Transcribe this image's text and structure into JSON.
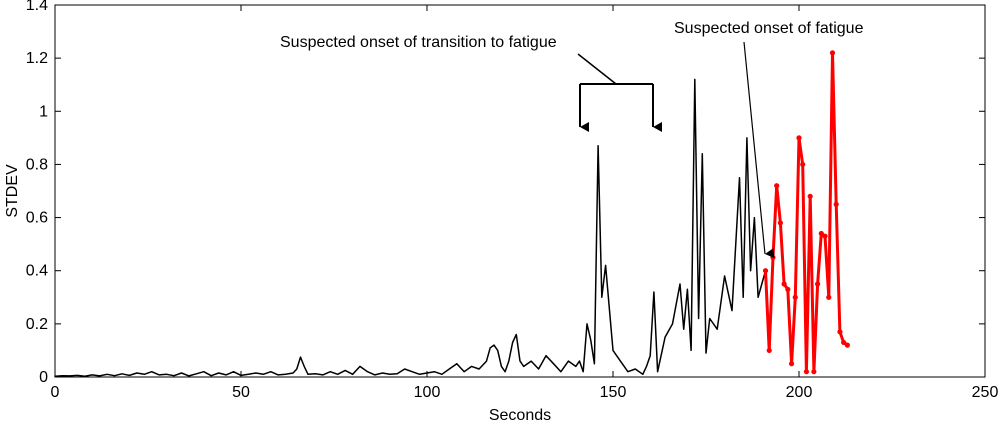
{
  "chart_data": {
    "type": "line",
    "title": "",
    "xlabel": "Seconds",
    "ylabel": "STDEV",
    "xlim": [
      0,
      250
    ],
    "ylim": [
      0,
      1.4
    ],
    "xticks": [
      0,
      50,
      100,
      150,
      200,
      250
    ],
    "yticks": [
      0,
      0.2,
      0.4,
      0.6,
      0.8,
      1,
      1.2,
      1.4
    ],
    "xtick_labels": [
      "0",
      "50",
      "100",
      "150",
      "200",
      "250"
    ],
    "ytick_labels": [
      "0",
      "0.2",
      "0.4",
      "0.6",
      "0.8",
      "1",
      "1.2",
      "1.4"
    ],
    "grid": false,
    "series": [
      {
        "color": "#000000",
        "x": [
          0,
          2,
          4,
          6,
          8,
          10,
          12,
          14,
          16,
          18,
          20,
          22,
          24,
          26,
          28,
          30,
          32,
          34,
          36,
          38,
          40,
          42,
          44,
          46,
          48,
          50,
          52,
          54,
          56,
          58,
          60,
          62,
          64,
          65,
          66,
          67,
          68,
          70,
          72,
          74,
          76,
          78,
          80,
          82,
          84,
          86,
          88,
          90,
          92,
          94,
          96,
          98,
          100,
          102,
          104,
          106,
          108,
          110,
          112,
          114,
          116,
          117,
          118,
          119,
          120,
          121,
          122,
          123,
          124,
          125,
          126,
          128,
          130,
          132,
          134,
          136,
          138,
          140,
          141,
          142,
          143,
          144,
          145,
          146,
          147,
          148,
          150,
          152,
          154,
          156,
          158,
          159,
          160,
          161,
          162,
          164,
          166,
          168,
          169,
          170,
          171,
          172,
          173,
          174,
          175,
          176,
          178,
          180,
          182,
          184,
          185,
          186,
          187,
          188,
          189,
          190,
          191
        ],
        "values": [
          0.003,
          0.005,
          0.004,
          0.006,
          0.003,
          0.008,
          0.004,
          0.01,
          0.005,
          0.012,
          0.006,
          0.015,
          0.01,
          0.02,
          0.008,
          0.01,
          0.005,
          0.015,
          0.004,
          0.012,
          0.02,
          0.005,
          0.015,
          0.008,
          0.02,
          0.006,
          0.01,
          0.015,
          0.01,
          0.02,
          0.008,
          0.01,
          0.015,
          0.03,
          0.075,
          0.04,
          0.01,
          0.012,
          0.008,
          0.02,
          0.01,
          0.025,
          0.01,
          0.04,
          0.02,
          0.008,
          0.015,
          0.01,
          0.012,
          0.03,
          0.02,
          0.01,
          0.015,
          0.02,
          0.01,
          0.03,
          0.05,
          0.02,
          0.04,
          0.03,
          0.06,
          0.11,
          0.12,
          0.1,
          0.04,
          0.02,
          0.06,
          0.13,
          0.16,
          0.06,
          0.04,
          0.06,
          0.03,
          0.08,
          0.05,
          0.02,
          0.06,
          0.04,
          0.06,
          0.02,
          0.2,
          0.14,
          0.05,
          0.87,
          0.3,
          0.42,
          0.1,
          0.06,
          0.02,
          0.03,
          0.01,
          0.04,
          0.08,
          0.32,
          0.02,
          0.15,
          0.2,
          0.35,
          0.18,
          0.33,
          0.1,
          1.12,
          0.22,
          0.84,
          0.09,
          0.22,
          0.18,
          0.38,
          0.25,
          0.75,
          0.3,
          0.9,
          0.4,
          0.6,
          0.3,
          0.35,
          0.4
        ]
      },
      {
        "color": "#ff0000",
        "x": [
          191,
          192,
          193,
          194,
          195,
          196,
          197,
          198,
          199,
          200,
          201,
          202,
          203,
          204,
          205,
          206,
          207,
          208,
          209,
          210,
          211,
          212,
          213
        ],
        "values": [
          0.4,
          0.1,
          0.45,
          0.72,
          0.58,
          0.35,
          0.33,
          0.05,
          0.3,
          0.9,
          0.8,
          0.02,
          0.68,
          0.02,
          0.35,
          0.54,
          0.53,
          0.3,
          1.22,
          0.65,
          0.17,
          0.13,
          0.12
        ]
      }
    ],
    "annotations": [
      {
        "text": "Suspected onset of transition to fatigue"
      },
      {
        "text": "Suspected onset of fatigue"
      }
    ]
  }
}
